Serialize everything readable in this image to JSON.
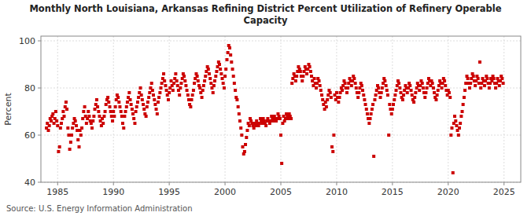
{
  "chart_data": {
    "type": "scatter",
    "title": "Monthly North Louisiana, Arkansas Refining District Percent Utilization of Refinery Operable\nCapacity",
    "y_label": "Percent",
    "source": "Source: U.S. Energy Information Administration",
    "color": "#cc0000",
    "marker": "square",
    "grid": true,
    "xlim": [
      1983.5,
      2026.5
    ],
    "ylim": [
      40,
      102
    ],
    "xticks": [
      1985,
      1990,
      1995,
      2000,
      2005,
      2010,
      2015,
      2020,
      2025
    ],
    "yticks": [
      40,
      60,
      80,
      100
    ],
    "x": [
      1984.0,
      1984.08,
      1984.17,
      1984.25,
      1984.33,
      1984.42,
      1984.5,
      1984.58,
      1984.67,
      1984.75,
      1984.83,
      1984.92,
      1985.0,
      1985.08,
      1985.17,
      1985.25,
      1985.33,
      1985.42,
      1985.5,
      1985.58,
      1985.67,
      1985.75,
      1985.83,
      1985.92,
      1986.0,
      1986.08,
      1986.17,
      1986.25,
      1986.33,
      1986.42,
      1986.5,
      1986.58,
      1986.67,
      1986.75,
      1986.83,
      1986.92,
      1987.0,
      1987.08,
      1987.17,
      1987.25,
      1987.33,
      1987.42,
      1987.5,
      1987.58,
      1987.67,
      1987.75,
      1987.83,
      1987.92,
      1988.0,
      1988.08,
      1988.17,
      1988.25,
      1988.33,
      1988.42,
      1988.5,
      1988.58,
      1988.67,
      1988.75,
      1988.83,
      1988.92,
      1989.0,
      1989.08,
      1989.17,
      1989.25,
      1989.33,
      1989.42,
      1989.5,
      1989.58,
      1989.67,
      1989.75,
      1989.83,
      1989.92,
      1990.0,
      1990.08,
      1990.17,
      1990.25,
      1990.33,
      1990.42,
      1990.5,
      1990.58,
      1990.67,
      1990.75,
      1990.83,
      1990.92,
      1991.0,
      1991.08,
      1991.17,
      1991.25,
      1991.33,
      1991.42,
      1991.5,
      1991.58,
      1991.67,
      1991.75,
      1991.83,
      1991.92,
      1992.0,
      1992.08,
      1992.17,
      1992.25,
      1992.33,
      1992.42,
      1992.5,
      1992.58,
      1992.67,
      1992.75,
      1992.83,
      1992.92,
      1993.0,
      1993.08,
      1993.17,
      1993.25,
      1993.33,
      1993.42,
      1993.5,
      1993.58,
      1993.67,
      1993.75,
      1993.83,
      1993.92,
      1994.0,
      1994.08,
      1994.17,
      1994.25,
      1994.33,
      1994.42,
      1994.5,
      1994.58,
      1994.67,
      1994.75,
      1994.83,
      1994.92,
      1995.0,
      1995.08,
      1995.17,
      1995.25,
      1995.33,
      1995.42,
      1995.5,
      1995.58,
      1995.67,
      1995.75,
      1995.83,
      1995.92,
      1996.0,
      1996.08,
      1996.17,
      1996.25,
      1996.33,
      1996.42,
      1996.5,
      1996.58,
      1996.67,
      1996.75,
      1996.83,
      1996.92,
      1997.0,
      1997.08,
      1997.17,
      1997.25,
      1997.33,
      1997.42,
      1997.5,
      1997.58,
      1997.67,
      1997.75,
      1997.83,
      1997.92,
      1998.0,
      1998.08,
      1998.17,
      1998.25,
      1998.33,
      1998.42,
      1998.5,
      1998.58,
      1998.67,
      1998.75,
      1998.83,
      1998.92,
      1999.0,
      1999.08,
      1999.17,
      1999.25,
      1999.33,
      1999.42,
      1999.5,
      1999.58,
      1999.67,
      1999.75,
      1999.83,
      1999.92,
      2000.0,
      2000.08,
      2000.17,
      2000.25,
      2000.33,
      2000.42,
      2000.5,
      2000.58,
      2000.67,
      2000.75,
      2000.83,
      2000.92,
      2001.0,
      2001.08,
      2001.17,
      2001.25,
      2001.33,
      2001.42,
      2001.5,
      2001.58,
      2001.67,
      2001.75,
      2001.83,
      2001.92,
      2002.0,
      2002.08,
      2002.17,
      2002.25,
      2002.33,
      2002.42,
      2002.5,
      2002.58,
      2002.67,
      2002.75,
      2002.83,
      2002.92,
      2003.0,
      2003.08,
      2003.17,
      2003.25,
      2003.33,
      2003.42,
      2003.5,
      2003.58,
      2003.67,
      2003.75,
      2003.83,
      2003.92,
      2004.0,
      2004.08,
      2004.17,
      2004.25,
      2004.33,
      2004.42,
      2004.5,
      2004.58,
      2004.67,
      2004.75,
      2004.83,
      2004.92,
      2005.0,
      2005.08,
      2005.17,
      2005.25,
      2005.33,
      2005.42,
      2005.5,
      2005.58,
      2005.67,
      2005.75,
      2005.83,
      2005.92,
      2006.0,
      2006.08,
      2006.17,
      2006.25,
      2006.33,
      2006.42,
      2006.5,
      2006.58,
      2006.67,
      2006.75,
      2006.83,
      2006.92,
      2007.0,
      2007.08,
      2007.17,
      2007.25,
      2007.33,
      2007.42,
      2007.5,
      2007.58,
      2007.67,
      2007.75,
      2007.83,
      2007.92,
      2008.0,
      2008.08,
      2008.17,
      2008.25,
      2008.33,
      2008.42,
      2008.5,
      2008.58,
      2008.67,
      2008.75,
      2008.83,
      2008.92,
      2009.0,
      2009.08,
      2009.17,
      2009.25,
      2009.33,
      2009.42,
      2009.5,
      2009.58,
      2009.67,
      2009.75,
      2009.83,
      2009.92,
      2010.0,
      2010.08,
      2010.17,
      2010.25,
      2010.33,
      2010.42,
      2010.5,
      2010.58,
      2010.67,
      2010.75,
      2010.83,
      2010.92,
      2011.0,
      2011.08,
      2011.17,
      2011.25,
      2011.33,
      2011.42,
      2011.5,
      2011.58,
      2011.67,
      2011.75,
      2011.83,
      2011.92,
      2012.0,
      2012.08,
      2012.17,
      2012.25,
      2012.33,
      2012.42,
      2012.5,
      2012.58,
      2012.67,
      2012.75,
      2012.83,
      2012.92,
      2013.0,
      2013.08,
      2013.17,
      2013.25,
      2013.33,
      2013.42,
      2013.5,
      2013.58,
      2013.67,
      2013.75,
      2013.83,
      2013.92,
      2014.0,
      2014.08,
      2014.17,
      2014.25,
      2014.33,
      2014.42,
      2014.5,
      2014.58,
      2014.67,
      2014.75,
      2014.83,
      2014.92,
      2015.0,
      2015.08,
      2015.17,
      2015.25,
      2015.33,
      2015.42,
      2015.5,
      2015.58,
      2015.67,
      2015.75,
      2015.83,
      2015.92,
      2016.0,
      2016.08,
      2016.17,
      2016.25,
      2016.33,
      2016.42,
      2016.5,
      2016.58,
      2016.67,
      2016.75,
      2016.83,
      2016.92,
      2017.0,
      2017.08,
      2017.17,
      2017.25,
      2017.33,
      2017.42,
      2017.5,
      2017.58,
      2017.67,
      2017.75,
      2017.83,
      2017.92,
      2018.0,
      2018.08,
      2018.17,
      2018.25,
      2018.33,
      2018.42,
      2018.5,
      2018.58,
      2018.67,
      2018.75,
      2018.83,
      2018.92,
      2019.0,
      2019.08,
      2019.17,
      2019.25,
      2019.33,
      2019.42,
      2019.5,
      2019.58,
      2019.67,
      2019.75,
      2019.83,
      2019.92,
      2020.0,
      2020.08,
      2020.17,
      2020.25,
      2020.33,
      2020.42,
      2020.5,
      2020.58,
      2020.67,
      2020.75,
      2020.83,
      2020.92,
      2021.0,
      2021.08,
      2021.17,
      2021.25,
      2021.33,
      2021.42,
      2021.5,
      2021.58,
      2021.67,
      2021.75,
      2021.83,
      2021.92,
      2022.0,
      2022.08,
      2022.17,
      2022.25,
      2022.33,
      2022.42,
      2022.5,
      2022.58,
      2022.67,
      2022.75,
      2022.83,
      2022.92,
      2023.0,
      2023.08,
      2023.17,
      2023.25,
      2023.33,
      2023.42,
      2023.5,
      2023.58,
      2023.67,
      2023.75,
      2023.83,
      2023.92,
      2024.0,
      2024.08,
      2024.17,
      2024.25,
      2024.33,
      2024.42,
      2024.5,
      2024.58,
      2024.67,
      2024.75,
      2024.83,
      2024.92
    ],
    "values": [
      63,
      65,
      62,
      64,
      67,
      66,
      68,
      69,
      65,
      67,
      70,
      66,
      64,
      53,
      55,
      63,
      65,
      67,
      70,
      68,
      72,
      74,
      71,
      63,
      60,
      54,
      57,
      60,
      63,
      65,
      67,
      66,
      64,
      62,
      58,
      55,
      62,
      60,
      63,
      67,
      70,
      72,
      68,
      65,
      67,
      70,
      68,
      66,
      65,
      63,
      66,
      68,
      71,
      73,
      75,
      72,
      70,
      68,
      66,
      64,
      67,
      65,
      68,
      70,
      73,
      75,
      76,
      74,
      72,
      70,
      68,
      66,
      70,
      68,
      72,
      75,
      77,
      76,
      74,
      72,
      70,
      68,
      65,
      63,
      68,
      70,
      72,
      74,
      76,
      78,
      75,
      73,
      71,
      69,
      67,
      65,
      70,
      72,
      74,
      76,
      78,
      80,
      77,
      75,
      73,
      71,
      69,
      68,
      72,
      74,
      76,
      78,
      80,
      82,
      79,
      77,
      75,
      73,
      71,
      69,
      74,
      76,
      78,
      80,
      82,
      84,
      86,
      83,
      81,
      79,
      77,
      75,
      78,
      80,
      83,
      81,
      79,
      82,
      84,
      86,
      83,
      81,
      79,
      77,
      80,
      82,
      84,
      86,
      85,
      83,
      81,
      79,
      77,
      75,
      73,
      72,
      75,
      77,
      79,
      82,
      84,
      86,
      85,
      83,
      81,
      80,
      78,
      76,
      79,
      81,
      83,
      85,
      87,
      89,
      88,
      86,
      84,
      82,
      80,
      78,
      81,
      83,
      85,
      87,
      89,
      91,
      90,
      88,
      86,
      84,
      82,
      80,
      85,
      88,
      92,
      95,
      98,
      97,
      94,
      91,
      88,
      85,
      82,
      79,
      76,
      75,
      72,
      69,
      66,
      63,
      60,
      55,
      52,
      53,
      56,
      59,
      62,
      65,
      64,
      67,
      66,
      65,
      64,
      63,
      65,
      64,
      66,
      65,
      64,
      65,
      67,
      66,
      65,
      67,
      66,
      65,
      64,
      66,
      67,
      66,
      65,
      66,
      68,
      67,
      66,
      68,
      67,
      66,
      67,
      69,
      68,
      67,
      60,
      48,
      65,
      68,
      66,
      67,
      69,
      68,
      67,
      69,
      68,
      67,
      82,
      84,
      86,
      85,
      83,
      85,
      87,
      89,
      88,
      87,
      85,
      83,
      85,
      87,
      89,
      88,
      86,
      88,
      90,
      89,
      87,
      85,
      83,
      81,
      84,
      82,
      80,
      82,
      84,
      83,
      81,
      79,
      77,
      75,
      73,
      71,
      74,
      72,
      75,
      77,
      79,
      78,
      76,
      55,
      53,
      60,
      77,
      75,
      78,
      76,
      74,
      76,
      78,
      80,
      79,
      81,
      83,
      82,
      80,
      78,
      80,
      82,
      84,
      83,
      81,
      83,
      85,
      84,
      82,
      80,
      78,
      76,
      78,
      80,
      82,
      81,
      79,
      77,
      75,
      73,
      71,
      69,
      67,
      65,
      67,
      69,
      71,
      73,
      51,
      75,
      77,
      79,
      81,
      80,
      78,
      76,
      78,
      80,
      82,
      84,
      83,
      81,
      79,
      77,
      60,
      73,
      71,
      69,
      71,
      73,
      75,
      77,
      79,
      81,
      83,
      82,
      80,
      78,
      76,
      75,
      77,
      79,
      81,
      80,
      78,
      80,
      82,
      81,
      79,
      77,
      75,
      74,
      76,
      78,
      80,
      82,
      81,
      79,
      81,
      83,
      82,
      80,
      78,
      76,
      78,
      80,
      82,
      84,
      83,
      81,
      83,
      82,
      80,
      78,
      76,
      75,
      77,
      79,
      81,
      83,
      82,
      80,
      82,
      84,
      83,
      81,
      79,
      77,
      79,
      78,
      76,
      60,
      63,
      44,
      65,
      68,
      66,
      64,
      62,
      60,
      63,
      65,
      68,
      70,
      73,
      76,
      79,
      82,
      85,
      84,
      82,
      80,
      82,
      84,
      86,
      85,
      83,
      81,
      83,
      85,
      84,
      82,
      91,
      80,
      82,
      84,
      83,
      81,
      83,
      85,
      84,
      82,
      80,
      82,
      84,
      83,
      85,
      84,
      82,
      80,
      82,
      84,
      83,
      81,
      83,
      85,
      84,
      82
    ]
  }
}
